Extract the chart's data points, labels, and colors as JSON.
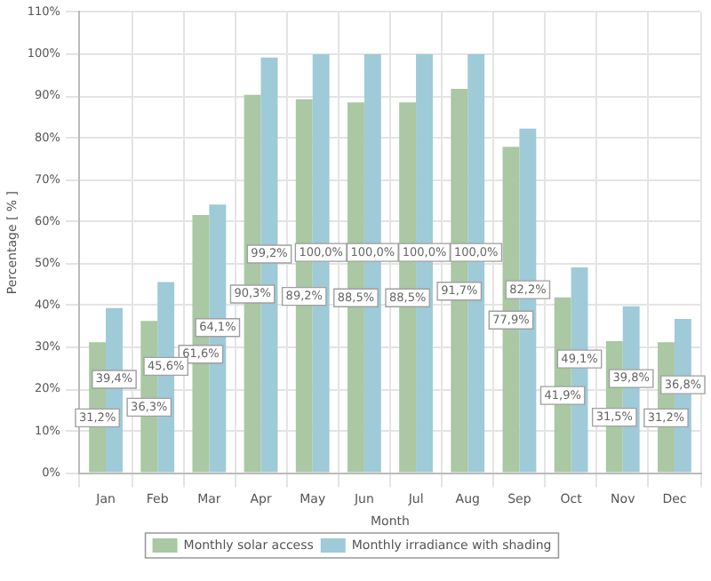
{
  "chart_data": {
    "type": "bar",
    "xlabel": "Month",
    "ylabel": "Percentage [ % ]",
    "categories": [
      "Jan",
      "Feb",
      "Mar",
      "Apr",
      "May",
      "Jun",
      "Jul",
      "Aug",
      "Sep",
      "Oct",
      "Nov",
      "Dec"
    ],
    "series": [
      {
        "name": "Monthly solar access",
        "color": "#a9c8a3",
        "values": [
          31.2,
          36.3,
          61.6,
          90.3,
          89.2,
          88.5,
          88.5,
          91.7,
          77.9,
          41.9,
          31.5,
          31.2
        ],
        "value_labels": [
          "31,2%",
          "36,3%",
          "61,6%",
          "90,3%",
          "89,2%",
          "88,5%",
          "88,5%",
          "91,7%",
          "77,9%",
          "41,9%",
          "31,5%",
          "31,2%"
        ]
      },
      {
        "name": "Monthly irradiance with shading",
        "color": "#9fcad7",
        "values": [
          39.4,
          45.6,
          64.1,
          99.2,
          100.0,
          100.0,
          100.0,
          100.0,
          82.2,
          49.1,
          39.8,
          36.8
        ],
        "value_labels": [
          "39,4%",
          "45,6%",
          "64,1%",
          "99,2%",
          "100,0%",
          "100,0%",
          "100,0%",
          "100,0%",
          "82,2%",
          "49,1%",
          "39,8%",
          "36,8%"
        ]
      }
    ],
    "ylim": [
      0,
      110
    ],
    "yticks": [
      {
        "value": 0,
        "label": "0%"
      },
      {
        "value": 10,
        "label": "10%"
      },
      {
        "value": 20,
        "label": "20%"
      },
      {
        "value": 30,
        "label": "30%"
      },
      {
        "value": 40,
        "label": "40%"
      },
      {
        "value": 50,
        "label": "50%"
      },
      {
        "value": 60,
        "label": "60%"
      },
      {
        "value": 70,
        "label": "70%"
      },
      {
        "value": 80,
        "label": "80%"
      },
      {
        "value": 90,
        "label": "90%"
      },
      {
        "value": 100,
        "label": "100%"
      },
      {
        "value": 110,
        "label": "110%"
      }
    ],
    "grid": true,
    "legend": "bottom"
  }
}
